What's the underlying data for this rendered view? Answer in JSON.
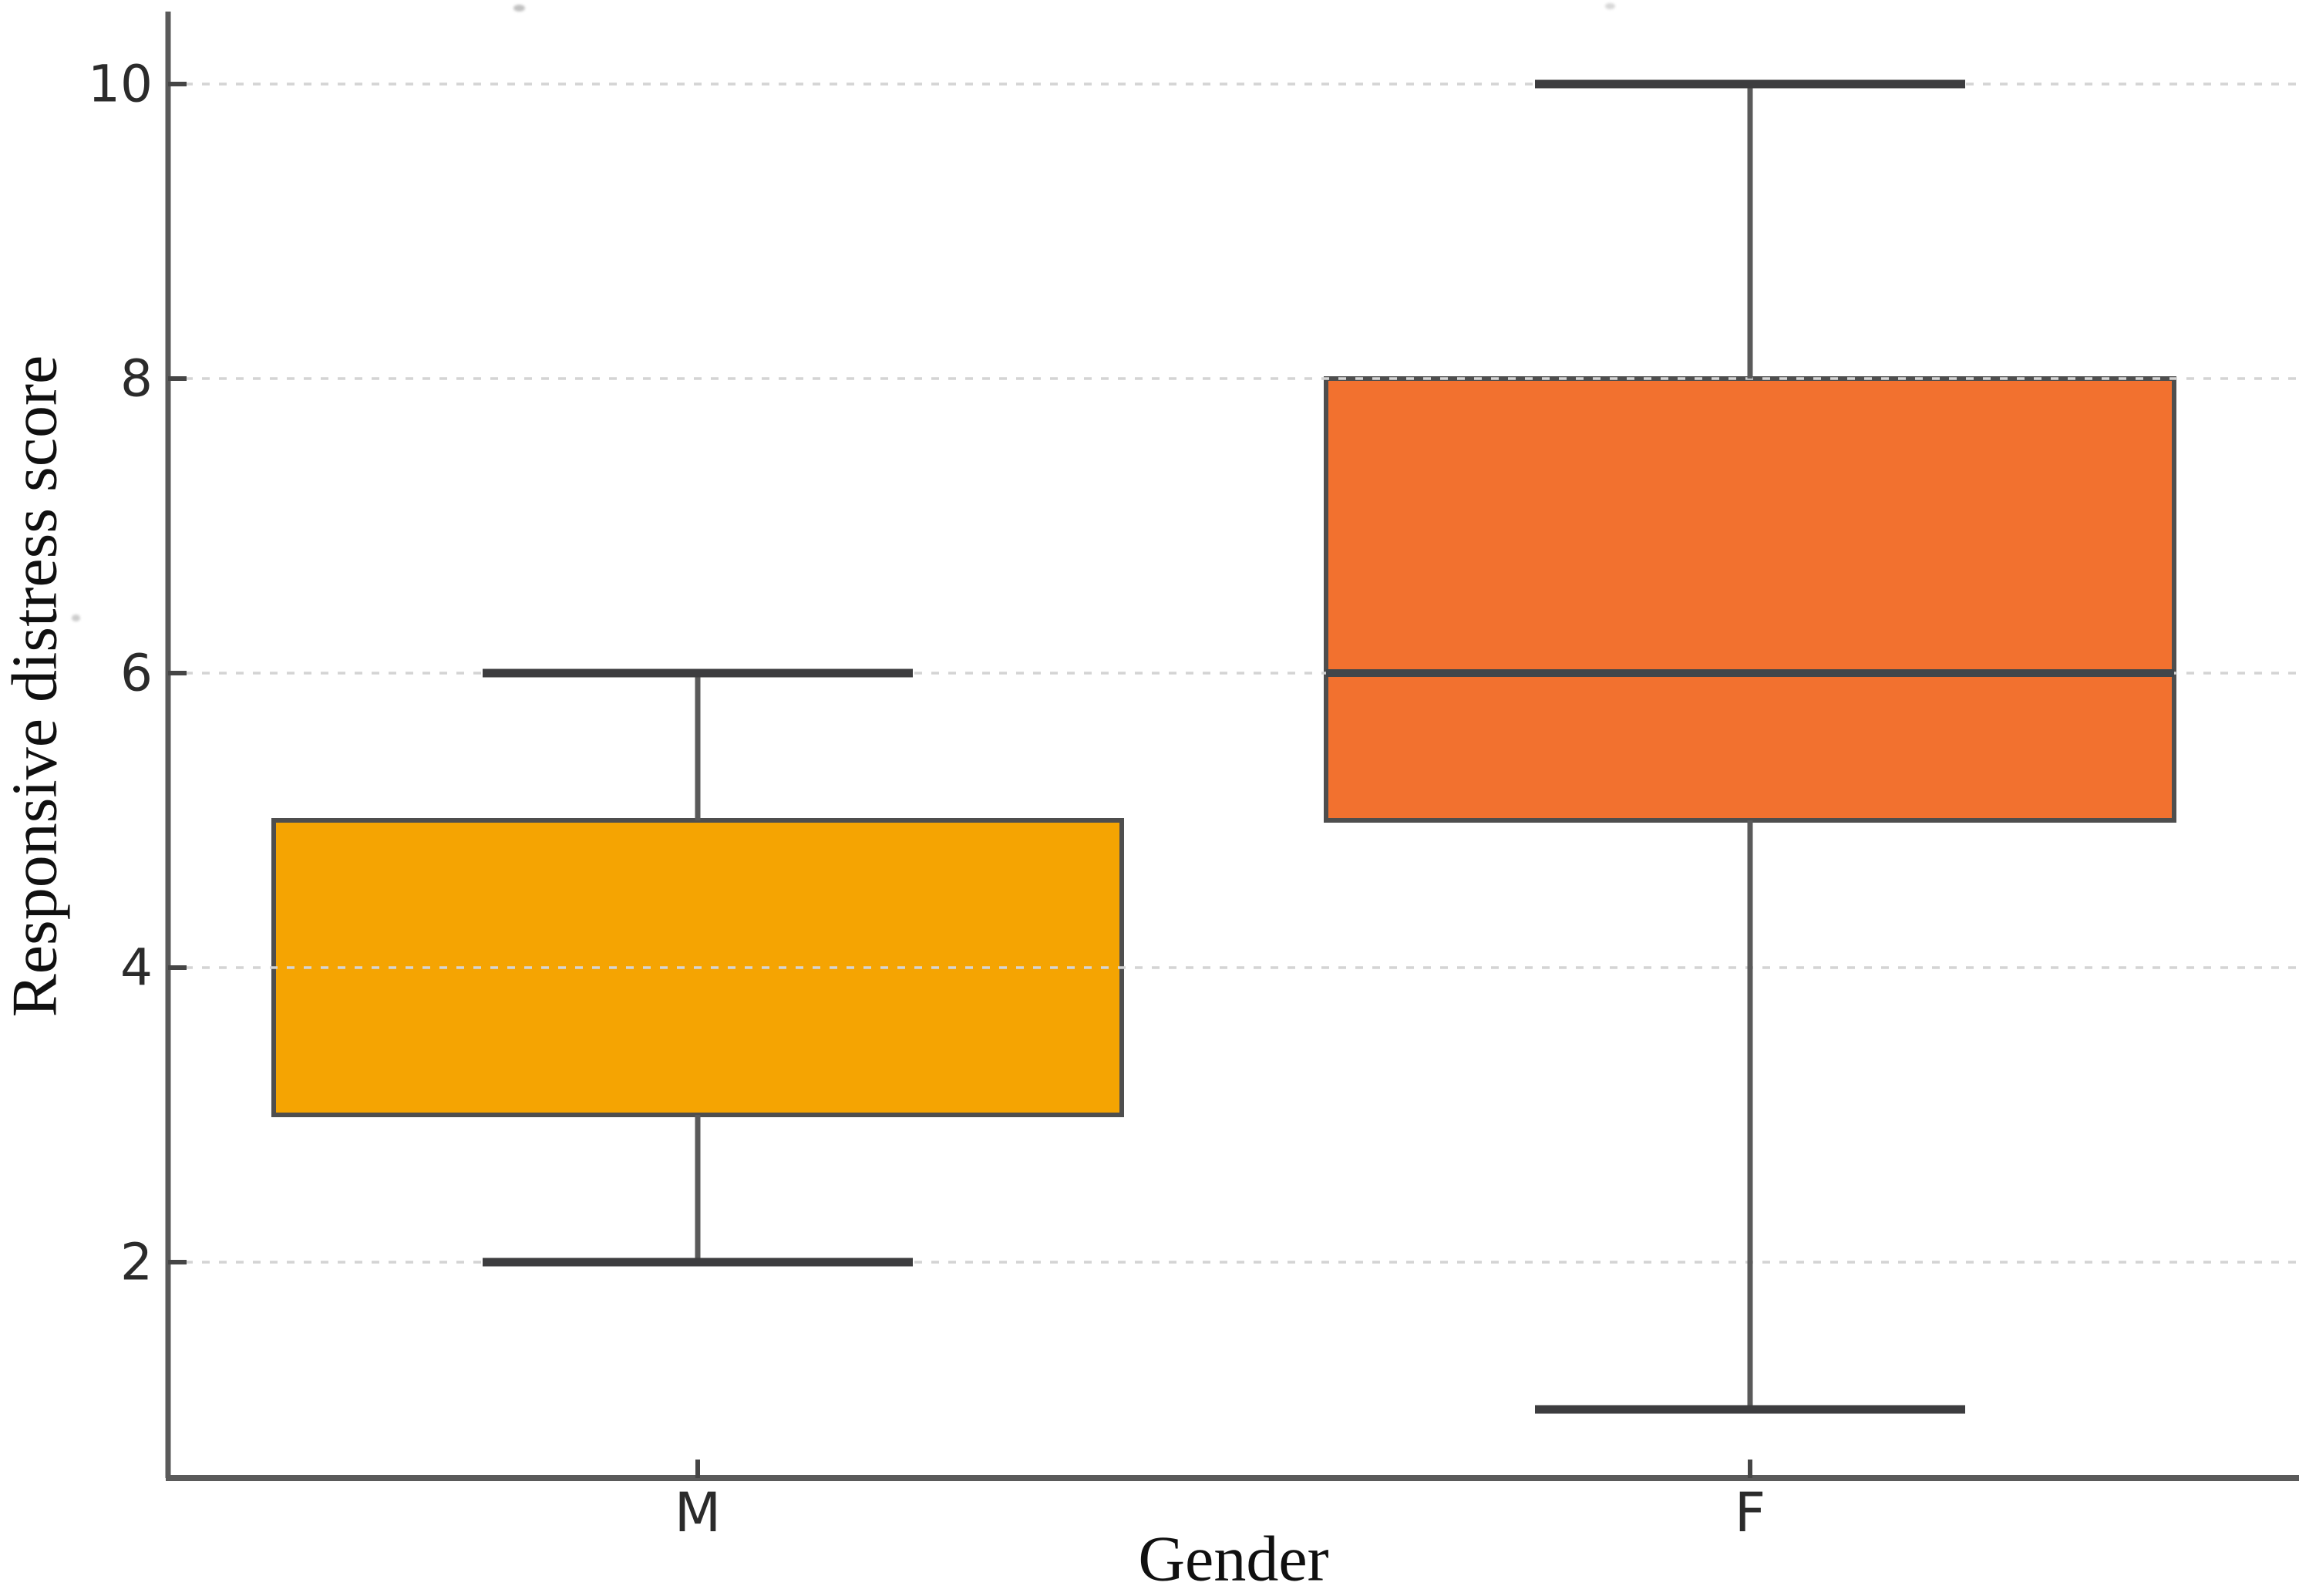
{
  "figure": {
    "background": "#ffffff"
  },
  "chart_data": {
    "type": "boxplot",
    "title": "",
    "xlabel": "Gender",
    "ylabel": "Responsive distress score",
    "categories": [
      "M",
      "F"
    ],
    "series": [
      {
        "name": "M",
        "whisker_low": 2,
        "q1": 3,
        "median": null,
        "q3": 5,
        "whisker_high": 6,
        "fill": "#F5A402"
      },
      {
        "name": "F",
        "whisker_low": 1,
        "q1": 5,
        "median": 6,
        "q3": 8,
        "whisker_high": 10,
        "fill": "#F2712F"
      }
    ],
    "yticks": [
      2,
      4,
      6,
      8,
      10
    ],
    "ylim": [
      0.53,
      10.49
    ],
    "grid": "horizontal-dotted",
    "legend": "none",
    "colors": {
      "box_edge": "#4e4e4e",
      "whisker": "#5a5a5a",
      "cap": "#3d3d3f",
      "median": "#40464b",
      "grid": "#d4d4d4",
      "spine": "#5a5a5a",
      "tick": "#454545",
      "tick_label": "#2b2b2b",
      "axis_label": "#101010",
      "m_fill": "#F5A402",
      "f_fill": "#F2712F"
    }
  }
}
